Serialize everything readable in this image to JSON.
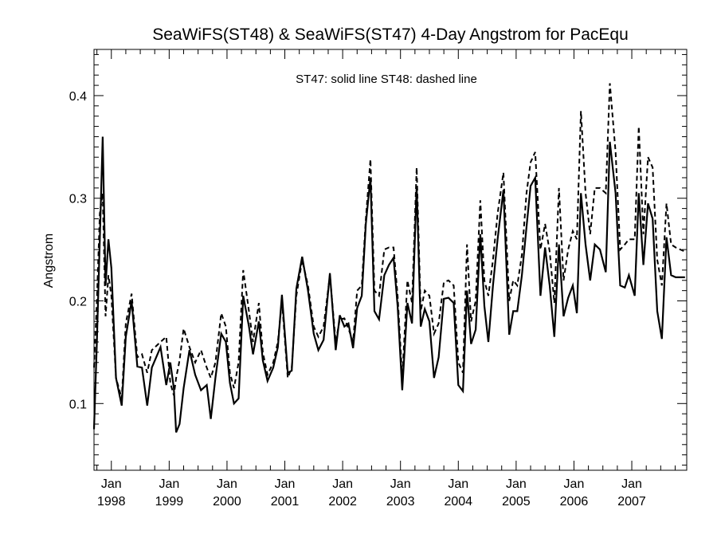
{
  "chart_data": {
    "type": "line",
    "title": "SeaWiFS(ST48) & SeaWiFS(ST47) 4-Day Angstrom for PacEqu",
    "ylabel": "Angstrom",
    "xlabel": "",
    "annotation": "ST47: solid line   ST48: dashed line",
    "ylim": [
      0.035,
      0.445
    ],
    "xlim": [
      1997.7,
      2007.95
    ],
    "y_ticks": [
      0.1,
      0.2,
      0.3,
      0.4
    ],
    "y_tick_labels": [
      "0.1",
      "0.2",
      "0.3",
      "0.4"
    ],
    "x_ticks": [
      {
        "x": 1998.0,
        "month": "Jan",
        "year": "1998"
      },
      {
        "x": 1999.0,
        "month": "Jan",
        "year": "1999"
      },
      {
        "x": 2000.0,
        "month": "Jan",
        "year": "2000"
      },
      {
        "x": 2001.0,
        "month": "Jan",
        "year": "2001"
      },
      {
        "x": 2002.0,
        "month": "Jan",
        "year": "2002"
      },
      {
        "x": 2003.0,
        "month": "Jan",
        "year": "2003"
      },
      {
        "x": 2004.0,
        "month": "Jan",
        "year": "2004"
      },
      {
        "x": 2005.0,
        "month": "Jan",
        "year": "2005"
      },
      {
        "x": 2006.0,
        "month": "Jan",
        "year": "2006"
      },
      {
        "x": 2007.0,
        "month": "Jan",
        "year": "2007"
      }
    ],
    "grid": false,
    "series": [
      {
        "name": "ST47",
        "style": "solid",
        "x": [
          1997.7,
          1997.75,
          1997.8,
          1997.85,
          1997.9,
          1997.95,
          1998.0,
          1998.08,
          1998.18,
          1998.25,
          1998.35,
          1998.45,
          1998.53,
          1998.62,
          1998.7,
          1998.85,
          1998.95,
          1999.02,
          1999.08,
          1999.12,
          1999.18,
          1999.25,
          1999.35,
          1999.45,
          1999.55,
          1999.65,
          1999.72,
          1999.8,
          1999.9,
          1999.98,
          2000.05,
          2000.12,
          2000.2,
          2000.28,
          2000.38,
          2000.45,
          2000.55,
          2000.62,
          2000.7,
          2000.8,
          2000.88,
          2000.95,
          2001.05,
          2001.12,
          2001.2,
          2001.3,
          2001.4,
          2001.5,
          2001.58,
          2001.67,
          2001.78,
          2001.88,
          2001.95,
          2002.03,
          2002.1,
          2002.18,
          2002.25,
          2002.33,
          2002.4,
          2002.48,
          2002.55,
          2002.63,
          2002.72,
          2002.8,
          2002.88,
          2002.95,
          2003.03,
          2003.12,
          2003.2,
          2003.28,
          2003.35,
          2003.42,
          2003.5,
          2003.58,
          2003.66,
          2003.75,
          2003.83,
          2003.92,
          2004.0,
          2004.08,
          2004.15,
          2004.22,
          2004.3,
          2004.38,
          2004.45,
          2004.52,
          2004.6,
          2004.68,
          2004.78,
          2004.88,
          2004.95,
          2005.02,
          2005.1,
          2005.18,
          2005.25,
          2005.33,
          2005.42,
          2005.5,
          2005.58,
          2005.66,
          2005.74,
          2005.82,
          2005.9,
          2005.98,
          2006.05,
          2006.12,
          2006.2,
          2006.28,
          2006.36,
          2006.45,
          2006.55,
          2006.62,
          2006.72,
          2006.8,
          2006.88,
          2006.95,
          2007.05,
          2007.12,
          2007.2,
          2007.28,
          2007.36,
          2007.44,
          2007.52,
          2007.6,
          2007.68,
          2007.76,
          2007.84,
          2007.92
        ],
        "y": [
          0.075,
          0.16,
          0.26,
          0.36,
          0.215,
          0.26,
          0.232,
          0.125,
          0.098,
          0.165,
          0.2,
          0.136,
          0.135,
          0.098,
          0.135,
          0.155,
          0.118,
          0.14,
          0.115,
          0.072,
          0.08,
          0.115,
          0.152,
          0.128,
          0.113,
          0.118,
          0.085,
          0.125,
          0.168,
          0.16,
          0.12,
          0.1,
          0.105,
          0.205,
          0.175,
          0.148,
          0.18,
          0.142,
          0.122,
          0.135,
          0.155,
          0.206,
          0.13,
          0.132,
          0.212,
          0.243,
          0.21,
          0.168,
          0.152,
          0.162,
          0.227,
          0.152,
          0.186,
          0.175,
          0.178,
          0.154,
          0.193,
          0.205,
          0.275,
          0.32,
          0.19,
          0.182,
          0.225,
          0.235,
          0.242,
          0.195,
          0.113,
          0.198,
          0.178,
          0.312,
          0.175,
          0.192,
          0.18,
          0.125,
          0.145,
          0.202,
          0.203,
          0.198,
          0.118,
          0.112,
          0.21,
          0.158,
          0.172,
          0.265,
          0.195,
          0.16,
          0.215,
          0.26,
          0.308,
          0.167,
          0.19,
          0.19,
          0.225,
          0.272,
          0.312,
          0.32,
          0.205,
          0.252,
          0.215,
          0.165,
          0.255,
          0.185,
          0.203,
          0.215,
          0.188,
          0.305,
          0.255,
          0.22,
          0.255,
          0.25,
          0.228,
          0.355,
          0.305,
          0.215,
          0.213,
          0.225,
          0.205,
          0.305,
          0.235,
          0.295,
          0.28,
          0.19,
          0.163,
          0.262,
          0.225,
          0.223,
          0.223,
          0.223
        ]
      },
      {
        "name": "ST48",
        "style": "dashed",
        "x": [
          1997.7,
          1997.75,
          1997.8,
          1997.85,
          1997.9,
          1997.95,
          1998.0,
          1998.08,
          1998.18,
          1998.25,
          1998.35,
          1998.45,
          1998.53,
          1998.62,
          1998.7,
          1998.85,
          1998.95,
          1999.02,
          1999.08,
          1999.12,
          1999.18,
          1999.25,
          1999.35,
          1999.45,
          1999.55,
          1999.65,
          1999.72,
          1999.8,
          1999.9,
          1999.98,
          2000.05,
          2000.12,
          2000.2,
          2000.28,
          2000.38,
          2000.45,
          2000.55,
          2000.62,
          2000.7,
          2000.8,
          2000.88,
          2000.95,
          2001.05,
          2001.12,
          2001.2,
          2001.3,
          2001.4,
          2001.5,
          2001.58,
          2001.67,
          2001.78,
          2001.88,
          2001.95,
          2002.03,
          2002.1,
          2002.18,
          2002.25,
          2002.33,
          2002.4,
          2002.48,
          2002.55,
          2002.63,
          2002.72,
          2002.8,
          2002.88,
          2002.95,
          2003.03,
          2003.12,
          2003.2,
          2003.28,
          2003.35,
          2003.42,
          2003.5,
          2003.58,
          2003.66,
          2003.75,
          2003.83,
          2003.92,
          2004.0,
          2004.08,
          2004.15,
          2004.22,
          2004.3,
          2004.38,
          2004.45,
          2004.52,
          2004.6,
          2004.68,
          2004.78,
          2004.88,
          2004.95,
          2005.02,
          2005.1,
          2005.18,
          2005.25,
          2005.33,
          2005.42,
          2005.5,
          2005.58,
          2005.66,
          2005.74,
          2005.82,
          2005.9,
          2005.98,
          2006.05,
          2006.12,
          2006.2,
          2006.28,
          2006.36,
          2006.45,
          2006.55,
          2006.62,
          2006.72,
          2006.8,
          2006.88,
          2006.95,
          2007.05,
          2007.12,
          2007.2,
          2007.28,
          2007.36,
          2007.44,
          2007.52,
          2007.6,
          2007.68,
          2007.76,
          2007.84,
          2007.92
        ],
        "y": [
          0.135,
          0.2,
          0.285,
          0.305,
          0.185,
          0.225,
          0.205,
          0.125,
          0.105,
          0.178,
          0.207,
          0.145,
          0.148,
          0.13,
          0.152,
          0.16,
          0.165,
          0.12,
          0.108,
          0.125,
          0.142,
          0.173,
          0.155,
          0.14,
          0.152,
          0.135,
          0.125,
          0.14,
          0.188,
          0.175,
          0.13,
          0.115,
          0.14,
          0.23,
          0.19,
          0.16,
          0.198,
          0.15,
          0.128,
          0.14,
          0.16,
          0.2,
          0.125,
          0.135,
          0.205,
          0.24,
          0.215,
          0.175,
          0.165,
          0.175,
          0.225,
          0.16,
          0.182,
          0.183,
          0.173,
          0.16,
          0.21,
          0.215,
          0.28,
          0.338,
          0.21,
          0.205,
          0.25,
          0.252,
          0.252,
          0.205,
          0.125,
          0.22,
          0.198,
          0.33,
          0.19,
          0.21,
          0.205,
          0.168,
          0.178,
          0.218,
          0.22,
          0.215,
          0.14,
          0.13,
          0.255,
          0.18,
          0.2,
          0.298,
          0.22,
          0.205,
          0.24,
          0.285,
          0.325,
          0.2,
          0.22,
          0.215,
          0.245,
          0.305,
          0.335,
          0.345,
          0.25,
          0.275,
          0.248,
          0.198,
          0.31,
          0.22,
          0.25,
          0.268,
          0.26,
          0.385,
          0.305,
          0.265,
          0.31,
          0.31,
          0.305,
          0.412,
          0.345,
          0.25,
          0.255,
          0.26,
          0.26,
          0.37,
          0.265,
          0.34,
          0.33,
          0.24,
          0.215,
          0.295,
          0.255,
          0.252,
          0.25,
          0.248
        ]
      }
    ]
  }
}
